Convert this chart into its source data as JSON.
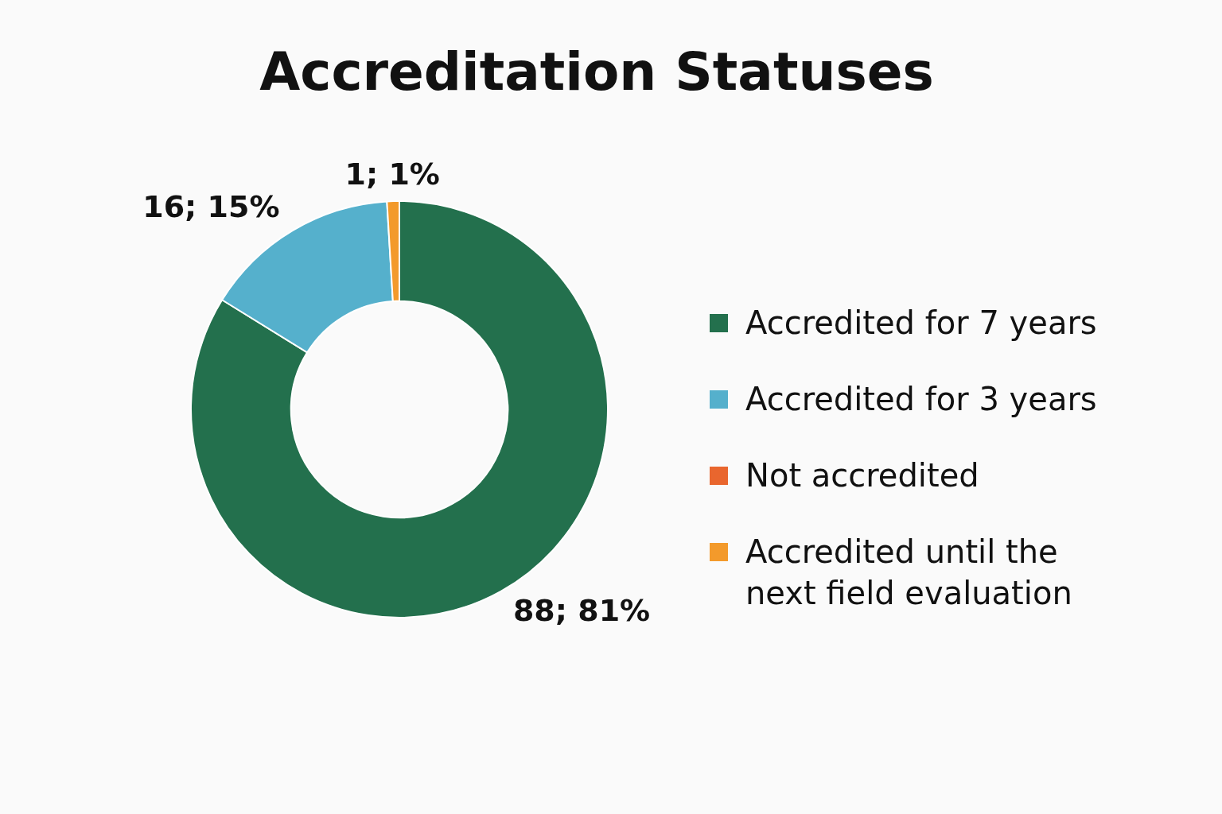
{
  "chart_data": {
    "type": "donut",
    "title": "Accreditation Statuses",
    "categories": [
      "Accredited for 7 years",
      "Accredited for 3 years",
      "Not accredited",
      "Accredited until the next field evaluation"
    ],
    "values": [
      88,
      16,
      0,
      1
    ],
    "colors": [
      "#23704d",
      "#55b0cc",
      "#e9662e",
      "#f39a2b"
    ],
    "value_labels": [
      "88; 81%",
      "16; 15%",
      null,
      "1; 1%"
    ],
    "legend": "right"
  }
}
